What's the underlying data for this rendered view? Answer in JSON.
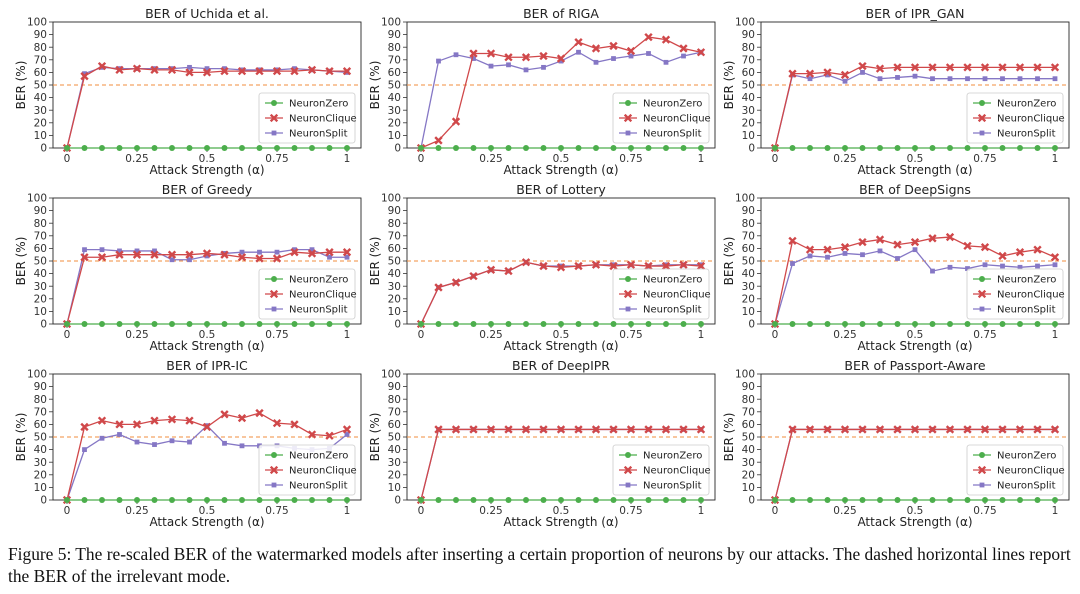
{
  "figure": {
    "caption": "Figure 5: The re-scaled BER of the watermarked models after inserting a certain proportion of neurons by our attacks. The dashed horizontal lines report the BER of the irrelevant mode."
  },
  "colors": {
    "NeuronZero": "#4cae4c",
    "NeuronClique": "#d0484a",
    "NeuronSplit": "#8577c5",
    "reference_line": "#f28e3c"
  },
  "chart_data": [
    {
      "type": "line",
      "title": "BER of Uchida et al.",
      "xlabel": "Attack Strength (α)",
      "ylabel": "BER (%)",
      "xlim": [
        0,
        1
      ],
      "ylim": [
        0,
        100
      ],
      "xticks": [
        "0",
        "0.25",
        "0.5",
        "0.75",
        "1"
      ],
      "yticks": [
        0,
        10,
        20,
        30,
        40,
        50,
        60,
        70,
        80,
        90,
        100
      ],
      "reference_line": 50,
      "legend_position": "lower right",
      "x": [
        0,
        0.0625,
        0.125,
        0.1875,
        0.25,
        0.3125,
        0.375,
        0.4375,
        0.5,
        0.5625,
        0.625,
        0.6875,
        0.75,
        0.8125,
        0.875,
        0.9375,
        1
      ],
      "series": [
        {
          "name": "NeuronZero",
          "values": [
            0,
            0,
            0,
            0,
            0,
            0,
            0,
            0,
            0,
            0,
            0,
            0,
            0,
            0,
            0,
            0,
            0
          ]
        },
        {
          "name": "NeuronClique",
          "values": [
            0,
            57,
            65,
            62,
            63,
            62,
            62,
            60,
            60,
            61,
            61,
            61,
            61,
            61,
            62,
            61,
            61
          ]
        },
        {
          "name": "NeuronSplit",
          "values": [
            0,
            59,
            64,
            63,
            63,
            63,
            63,
            64,
            63,
            63,
            62,
            62,
            62,
            63,
            62,
            61,
            60
          ]
        }
      ]
    },
    {
      "type": "line",
      "title": "BER of RIGA",
      "xlabel": "Attack Strength (α)",
      "ylabel": "BER (%)",
      "xlim": [
        0,
        1
      ],
      "ylim": [
        0,
        100
      ],
      "xticks": [
        "0",
        "0.25",
        "0.5",
        "0.75",
        "1"
      ],
      "yticks": [
        0,
        10,
        20,
        30,
        40,
        50,
        60,
        70,
        80,
        90,
        100
      ],
      "reference_line": 50,
      "legend_position": "lower right",
      "x": [
        0,
        0.0625,
        0.125,
        0.1875,
        0.25,
        0.3125,
        0.375,
        0.4375,
        0.5,
        0.5625,
        0.625,
        0.6875,
        0.75,
        0.8125,
        0.875,
        0.9375,
        1
      ],
      "series": [
        {
          "name": "NeuronZero",
          "values": [
            0,
            0,
            0,
            0,
            0,
            0,
            0,
            0,
            0,
            0,
            0,
            0,
            0,
            0,
            0,
            0,
            0
          ]
        },
        {
          "name": "NeuronClique",
          "values": [
            0,
            6,
            21,
            75,
            75,
            72,
            72,
            73,
            71,
            84,
            79,
            81,
            77,
            88,
            86,
            79,
            76
          ]
        },
        {
          "name": "NeuronSplit",
          "values": [
            0,
            69,
            74,
            71,
            65,
            66,
            62,
            64,
            69,
            76,
            68,
            71,
            73,
            75,
            68,
            73,
            76
          ]
        }
      ]
    },
    {
      "type": "line",
      "title": "BER of IPR_GAN",
      "xlabel": "Attack Strength (α)",
      "ylabel": "BER (%)",
      "xlim": [
        0,
        1
      ],
      "ylim": [
        0,
        100
      ],
      "xticks": [
        "0",
        "0.25",
        "0.5",
        "0.75",
        "1"
      ],
      "yticks": [
        0,
        10,
        20,
        30,
        40,
        50,
        60,
        70,
        80,
        90,
        100
      ],
      "reference_line": 50,
      "legend_position": "lower right",
      "x": [
        0,
        0.0625,
        0.125,
        0.1875,
        0.25,
        0.3125,
        0.375,
        0.4375,
        0.5,
        0.5625,
        0.625,
        0.6875,
        0.75,
        0.8125,
        0.875,
        0.9375,
        1
      ],
      "series": [
        {
          "name": "NeuronZero",
          "values": [
            0,
            0,
            0,
            0,
            0,
            0,
            0,
            0,
            0,
            0,
            0,
            0,
            0,
            0,
            0,
            0,
            0
          ]
        },
        {
          "name": "NeuronClique",
          "values": [
            0,
            59,
            59,
            60,
            58,
            65,
            63,
            64,
            64,
            64,
            64,
            64,
            64,
            64,
            64,
            64,
            64
          ]
        },
        {
          "name": "NeuronSplit",
          "values": [
            0,
            58,
            55,
            58,
            53,
            60,
            55,
            56,
            57,
            55,
            55,
            55,
            55,
            55,
            55,
            55,
            55
          ]
        }
      ]
    },
    {
      "type": "line",
      "title": "BER of Greedy",
      "xlabel": "Attack Strength (α)",
      "ylabel": "BER (%)",
      "xlim": [
        0,
        1
      ],
      "ylim": [
        0,
        100
      ],
      "xticks": [
        "0",
        "0.25",
        "0.5",
        "0.75",
        "1"
      ],
      "yticks": [
        0,
        10,
        20,
        30,
        40,
        50,
        60,
        70,
        80,
        90,
        100
      ],
      "reference_line": 50,
      "legend_position": "lower right",
      "x": [
        0,
        0.0625,
        0.125,
        0.1875,
        0.25,
        0.3125,
        0.375,
        0.4375,
        0.5,
        0.5625,
        0.625,
        0.6875,
        0.75,
        0.8125,
        0.875,
        0.9375,
        1
      ],
      "series": [
        {
          "name": "NeuronZero",
          "values": [
            0,
            0,
            0,
            0,
            0,
            0,
            0,
            0,
            0,
            0,
            0,
            0,
            0,
            0,
            0,
            0,
            0
          ]
        },
        {
          "name": "NeuronClique",
          "values": [
            0,
            53,
            53,
            55,
            55,
            55,
            55,
            55,
            56,
            55,
            53,
            52,
            52,
            57,
            56,
            57,
            57
          ]
        },
        {
          "name": "NeuronSplit",
          "values": [
            0,
            59,
            59,
            58,
            58,
            58,
            51,
            51,
            54,
            56,
            57,
            57,
            57,
            59,
            59,
            53,
            53
          ]
        }
      ]
    },
    {
      "type": "line",
      "title": "BER of Lottery",
      "xlabel": "Attack Strength (α)",
      "ylabel": "BER (%)",
      "xlim": [
        0,
        1
      ],
      "ylim": [
        0,
        100
      ],
      "xticks": [
        "0",
        "0.25",
        "0.5",
        "0.75",
        "1"
      ],
      "yticks": [
        0,
        10,
        20,
        30,
        40,
        50,
        60,
        70,
        80,
        90,
        100
      ],
      "reference_line": 50,
      "legend_position": "lower right",
      "x": [
        0,
        0.0625,
        0.125,
        0.1875,
        0.25,
        0.3125,
        0.375,
        0.4375,
        0.5,
        0.5625,
        0.625,
        0.6875,
        0.75,
        0.8125,
        0.875,
        0.9375,
        1
      ],
      "series": [
        {
          "name": "NeuronZero",
          "values": [
            0,
            0,
            0,
            0,
            0,
            0,
            0,
            0,
            0,
            0,
            0,
            0,
            0,
            0,
            0,
            0,
            0
          ]
        },
        {
          "name": "NeuronClique",
          "values": [
            0,
            29,
            33,
            38,
            43,
            42,
            49,
            46,
            45,
            46,
            47,
            46,
            47,
            46,
            46,
            47,
            46
          ]
        },
        {
          "name": "NeuronSplit",
          "values": [
            0,
            29,
            33,
            38,
            43,
            42,
            49,
            46,
            46,
            46,
            47,
            47,
            47,
            46,
            47,
            47,
            47
          ]
        }
      ]
    },
    {
      "type": "line",
      "title": "BER of DeepSigns",
      "xlabel": "Attack Strength (α)",
      "ylabel": "BER (%)",
      "xlim": [
        0,
        1
      ],
      "ylim": [
        0,
        100
      ],
      "xticks": [
        "0",
        "0.25",
        "0.5",
        "0.75",
        "1"
      ],
      "yticks": [
        0,
        10,
        20,
        30,
        40,
        50,
        60,
        70,
        80,
        90,
        100
      ],
      "reference_line": 50,
      "legend_position": "lower right",
      "x": [
        0,
        0.0625,
        0.125,
        0.1875,
        0.25,
        0.3125,
        0.375,
        0.4375,
        0.5,
        0.5625,
        0.625,
        0.6875,
        0.75,
        0.8125,
        0.875,
        0.9375,
        1
      ],
      "series": [
        {
          "name": "NeuronZero",
          "values": [
            0,
            0,
            0,
            0,
            0,
            0,
            0,
            0,
            0,
            0,
            0,
            0,
            0,
            0,
            0,
            0,
            0
          ]
        },
        {
          "name": "NeuronClique",
          "values": [
            0,
            66,
            59,
            59,
            61,
            65,
            67,
            63,
            65,
            68,
            69,
            62,
            61,
            54,
            57,
            59,
            53
          ]
        },
        {
          "name": "NeuronSplit",
          "values": [
            0,
            48,
            54,
            53,
            56,
            55,
            58,
            52,
            59,
            42,
            45,
            44,
            47,
            46,
            45,
            46,
            47
          ]
        }
      ]
    },
    {
      "type": "line",
      "title": "BER of IPR-IC",
      "xlabel": "Attack Strength (α)",
      "ylabel": "BER (%)",
      "xlim": [
        0,
        1
      ],
      "ylim": [
        0,
        100
      ],
      "xticks": [
        "0",
        "0.25",
        "0.5",
        "0.75",
        "1"
      ],
      "yticks": [
        0,
        10,
        20,
        30,
        40,
        50,
        60,
        70,
        80,
        90,
        100
      ],
      "reference_line": 50,
      "legend_position": "lower right",
      "x": [
        0,
        0.0625,
        0.125,
        0.1875,
        0.25,
        0.3125,
        0.375,
        0.4375,
        0.5,
        0.5625,
        0.625,
        0.6875,
        0.75,
        0.8125,
        0.875,
        0.9375,
        1
      ],
      "series": [
        {
          "name": "NeuronZero",
          "values": [
            0,
            0,
            0,
            0,
            0,
            0,
            0,
            0,
            0,
            0,
            0,
            0,
            0,
            0,
            0,
            0,
            0
          ]
        },
        {
          "name": "NeuronClique",
          "values": [
            0,
            58,
            63,
            60,
            60,
            63,
            64,
            63,
            58,
            68,
            65,
            69,
            61,
            60,
            52,
            51,
            56
          ]
        },
        {
          "name": "NeuronSplit",
          "values": [
            0,
            40,
            49,
            52,
            46,
            44,
            47,
            46,
            59,
            45,
            43,
            43,
            43,
            41,
            40,
            41,
            52
          ]
        }
      ]
    },
    {
      "type": "line",
      "title": "BER of DeepIPR",
      "xlabel": "Attack Strength (α)",
      "ylabel": "BER (%)",
      "xlim": [
        0,
        1
      ],
      "ylim": [
        0,
        100
      ],
      "xticks": [
        "0",
        "0.25",
        "0.5",
        "0.75",
        "1"
      ],
      "yticks": [
        0,
        10,
        20,
        30,
        40,
        50,
        60,
        70,
        80,
        90,
        100
      ],
      "reference_line": 50,
      "legend_position": "lower right",
      "x": [
        0,
        0.0625,
        0.125,
        0.1875,
        0.25,
        0.3125,
        0.375,
        0.4375,
        0.5,
        0.5625,
        0.625,
        0.6875,
        0.75,
        0.8125,
        0.875,
        0.9375,
        1
      ],
      "series": [
        {
          "name": "NeuronZero",
          "values": [
            0,
            0,
            0,
            0,
            0,
            0,
            0,
            0,
            0,
            0,
            0,
            0,
            0,
            0,
            0,
            0,
            0
          ]
        },
        {
          "name": "NeuronClique",
          "values": [
            0,
            56,
            56,
            56,
            56,
            56,
            56,
            56,
            56,
            56,
            56,
            56,
            56,
            56,
            56,
            56,
            56
          ]
        },
        {
          "name": "NeuronSplit",
          "values": [
            0,
            56,
            56,
            56,
            56,
            56,
            56,
            56,
            56,
            56,
            56,
            56,
            56,
            56,
            56,
            56,
            56
          ]
        }
      ]
    },
    {
      "type": "line",
      "title": "BER of Passport-Aware",
      "xlabel": "Attack Strength (α)",
      "ylabel": "BER (%)",
      "xlim": [
        0,
        1
      ],
      "ylim": [
        0,
        100
      ],
      "xticks": [
        "0",
        "0.25",
        "0.5",
        "0.75",
        "1"
      ],
      "yticks": [
        0,
        10,
        20,
        30,
        40,
        50,
        60,
        70,
        80,
        90,
        100
      ],
      "reference_line": 50,
      "legend_position": "lower right",
      "x": [
        0,
        0.0625,
        0.125,
        0.1875,
        0.25,
        0.3125,
        0.375,
        0.4375,
        0.5,
        0.5625,
        0.625,
        0.6875,
        0.75,
        0.8125,
        0.875,
        0.9375,
        1
      ],
      "series": [
        {
          "name": "NeuronZero",
          "values": [
            0,
            0,
            0,
            0,
            0,
            0,
            0,
            0,
            0,
            0,
            0,
            0,
            0,
            0,
            0,
            0,
            0
          ]
        },
        {
          "name": "NeuronClique",
          "values": [
            0,
            56,
            56,
            56,
            56,
            56,
            56,
            56,
            56,
            56,
            56,
            56,
            56,
            56,
            56,
            56,
            56
          ]
        },
        {
          "name": "NeuronSplit",
          "values": [
            0,
            56,
            56,
            56,
            56,
            56,
            56,
            56,
            56,
            56,
            56,
            56,
            56,
            56,
            56,
            56,
            56
          ]
        }
      ]
    }
  ]
}
